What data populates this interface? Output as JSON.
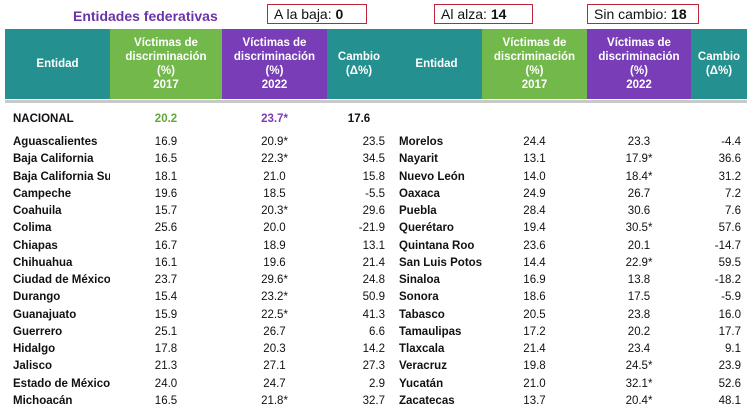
{
  "title": "Entidades federativas",
  "counters": {
    "a_la_baja": {
      "label": "A la baja:",
      "value": "0"
    },
    "al_alza": {
      "label": "Al alza:",
      "value": "14"
    },
    "sin_cambio": {
      "label": "Sin cambio:",
      "value": "18"
    }
  },
  "columns": {
    "entidad": "Entidad",
    "v2017": "Víctimas de\ndiscriminación\n(%)\n2017",
    "v2022": "Víctimas de\ndiscriminación\n(%)\n2022",
    "cambio": "Cambio\n(Δ%)"
  },
  "colors": {
    "teal": "#259090",
    "green": "#72b84a",
    "purple": "#7a3db8",
    "title": "#6b33a8",
    "counter_border": "#c0243c"
  },
  "nacional": {
    "name": "NACIONAL",
    "v2017": "20.2",
    "v2022": "23.7*",
    "cambio": "17.6"
  },
  "left_rows": [
    {
      "name": "Aguascalientes",
      "v2017": "16.9",
      "v2022": "20.9*",
      "cambio": "23.5"
    },
    {
      "name": "Baja California",
      "v2017": "16.5",
      "v2022": "22.3*",
      "cambio": "34.5"
    },
    {
      "name": "Baja California Sur",
      "v2017": "18.1",
      "v2022": "21.0",
      "cambio": "15.8"
    },
    {
      "name": "Campeche",
      "v2017": "19.6",
      "v2022": "18.5",
      "cambio": "-5.5"
    },
    {
      "name": "Coahuila",
      "v2017": "15.7",
      "v2022": "20.3*",
      "cambio": "29.6"
    },
    {
      "name": "Colima",
      "v2017": "25.6",
      "v2022": "20.0",
      "cambio": "-21.9"
    },
    {
      "name": "Chiapas",
      "v2017": "16.7",
      "v2022": "18.9",
      "cambio": "13.1"
    },
    {
      "name": "Chihuahua",
      "v2017": "16.1",
      "v2022": "19.6",
      "cambio": "21.4"
    },
    {
      "name": "Ciudad de México",
      "v2017": "23.7",
      "v2022": "29.6*",
      "cambio": "24.8"
    },
    {
      "name": "Durango",
      "v2017": "15.4",
      "v2022": "23.2*",
      "cambio": "50.9"
    },
    {
      "name": "Guanajuato",
      "v2017": "15.9",
      "v2022": "22.5*",
      "cambio": "41.3"
    },
    {
      "name": "Guerrero",
      "v2017": "25.1",
      "v2022": "26.7",
      "cambio": "6.6"
    },
    {
      "name": "Hidalgo",
      "v2017": "17.8",
      "v2022": "20.3",
      "cambio": "14.2"
    },
    {
      "name": "Jalisco",
      "v2017": "21.3",
      "v2022": "27.1",
      "cambio": "27.3"
    },
    {
      "name": "Estado de México",
      "v2017": "24.0",
      "v2022": "24.7",
      "cambio": "2.9"
    },
    {
      "name": "Michoacán",
      "v2017": "16.5",
      "v2022": "21.8*",
      "cambio": "32.7"
    }
  ],
  "right_rows": [
    {
      "name": "Morelos",
      "v2017": "24.4",
      "v2022": "23.3",
      "cambio": "-4.4"
    },
    {
      "name": "Nayarit",
      "v2017": "13.1",
      "v2022": "17.9*",
      "cambio": "36.6"
    },
    {
      "name": "Nuevo León",
      "v2017": "14.0",
      "v2022": "18.4*",
      "cambio": "31.2"
    },
    {
      "name": "Oaxaca",
      "v2017": "24.9",
      "v2022": "26.7",
      "cambio": "7.2"
    },
    {
      "name": "Puebla",
      "v2017": "28.4",
      "v2022": "30.6",
      "cambio": "7.6"
    },
    {
      "name": "Querétaro",
      "v2017": "19.4",
      "v2022": "30.5*",
      "cambio": "57.6"
    },
    {
      "name": "Quintana Roo",
      "v2017": "23.6",
      "v2022": "20.1",
      "cambio": "-14.7"
    },
    {
      "name": "San Luis Potosí",
      "v2017": "14.4",
      "v2022": "22.9*",
      "cambio": "59.5"
    },
    {
      "name": "Sinaloa",
      "v2017": "16.9",
      "v2022": "13.8",
      "cambio": "-18.2"
    },
    {
      "name": "Sonora",
      "v2017": "18.6",
      "v2022": "17.5",
      "cambio": "-5.9"
    },
    {
      "name": "Tabasco",
      "v2017": "20.5",
      "v2022": "23.8",
      "cambio": "16.0"
    },
    {
      "name": "Tamaulipas",
      "v2017": "17.2",
      "v2022": "20.2",
      "cambio": "17.7"
    },
    {
      "name": "Tlaxcala",
      "v2017": "21.4",
      "v2022": "23.4",
      "cambio": "9.1"
    },
    {
      "name": "Veracruz",
      "v2017": "19.8",
      "v2022": "24.5*",
      "cambio": "23.9"
    },
    {
      "name": "Yucatán",
      "v2017": "21.0",
      "v2022": "32.1*",
      "cambio": "52.6"
    },
    {
      "name": "Zacatecas",
      "v2017": "13.7",
      "v2022": "20.4*",
      "cambio": "48.1"
    }
  ]
}
